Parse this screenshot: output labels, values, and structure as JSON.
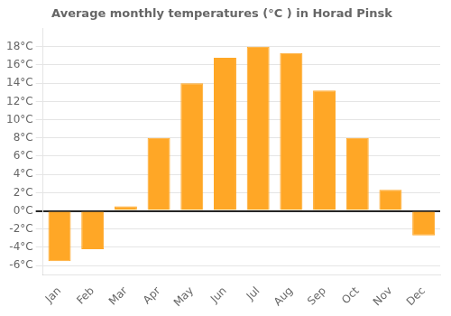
{
  "chart_data": {
    "type": "bar",
    "title": "Average monthly temperatures (°C ) in Horad Pinsk",
    "categories": [
      "Jan",
      "Feb",
      "Mar",
      "Apr",
      "May",
      "Jun",
      "Jul",
      "Aug",
      "Sep",
      "Oct",
      "Nov",
      "Dec"
    ],
    "values": [
      -5.5,
      -4.2,
      0.5,
      8.0,
      14.0,
      16.8,
      18.0,
      17.3,
      13.2,
      8.0,
      2.3,
      -2.7
    ],
    "color": "#FFA726",
    "ylim": [
      -7,
      20
    ],
    "yticks": [
      {
        "value": -6,
        "label": "-6°C"
      },
      {
        "value": -4,
        "label": "-4°C"
      },
      {
        "value": -2,
        "label": "-2°C"
      },
      {
        "value": 0,
        "label": "0°C"
      },
      {
        "value": 2,
        "label": "2°C"
      },
      {
        "value": 4,
        "label": "4°C"
      },
      {
        "value": 6,
        "label": "6°C"
      },
      {
        "value": 8,
        "label": "8°C"
      },
      {
        "value": 10,
        "label": "10°C"
      },
      {
        "value": 12,
        "label": "12°C"
      },
      {
        "value": 14,
        "label": "14°C"
      },
      {
        "value": 16,
        "label": "16°C"
      },
      {
        "value": 18,
        "label": "18°C"
      }
    ],
    "grid": true
  }
}
